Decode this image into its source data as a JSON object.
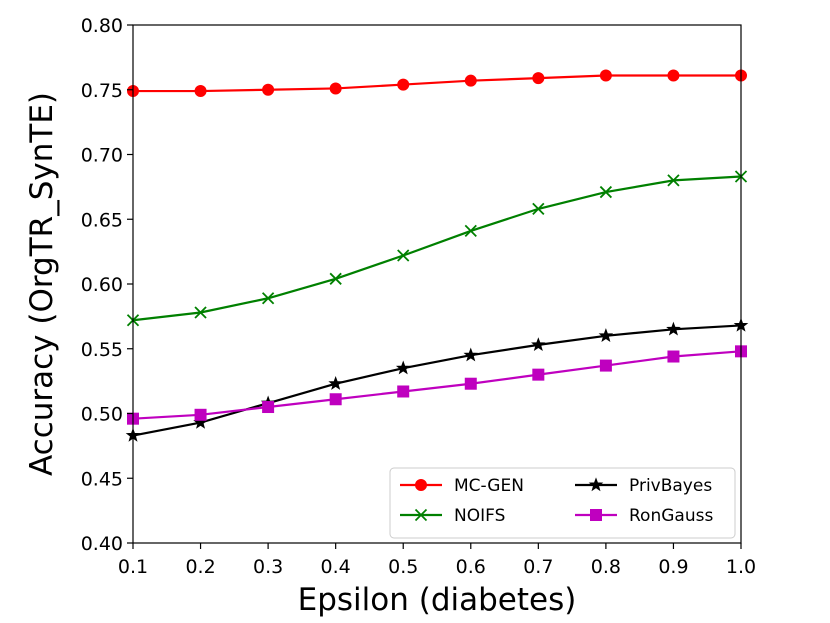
{
  "chart_data": {
    "type": "line",
    "xlabel": "Epsilon (diabetes)",
    "ylabel": "Accuracy (OrgTR_SynTE)",
    "xlim": [
      0.1,
      1.0
    ],
    "ylim": [
      0.4,
      0.8
    ],
    "x": [
      0.1,
      0.2,
      0.3,
      0.4,
      0.5,
      0.6,
      0.7,
      0.8,
      0.9,
      1.0
    ],
    "x_tick_labels": [
      "0.1",
      "0.2",
      "0.3",
      "0.4",
      "0.5",
      "0.6",
      "0.7",
      "0.8",
      "0.9",
      "1.0"
    ],
    "y_ticks": [
      0.4,
      0.45,
      0.5,
      0.55,
      0.6,
      0.65,
      0.7,
      0.75,
      0.8
    ],
    "y_tick_labels": [
      "0.40",
      "0.45",
      "0.50",
      "0.55",
      "0.60",
      "0.65",
      "0.70",
      "0.75",
      "0.80"
    ],
    "grid": false,
    "legend_position": "bottom-right",
    "series": [
      {
        "name": "MC-GEN",
        "color": "#ff0000",
        "marker": "circle",
        "values": [
          0.749,
          0.749,
          0.75,
          0.751,
          0.754,
          0.757,
          0.759,
          0.761,
          0.761,
          0.761
        ]
      },
      {
        "name": "NOIFS",
        "color": "#008000",
        "marker": "x",
        "values": [
          0.572,
          0.578,
          0.589,
          0.604,
          0.622,
          0.641,
          0.658,
          0.671,
          0.68,
          0.683
        ]
      },
      {
        "name": "PrivBayes",
        "color": "#000000",
        "marker": "star",
        "values": [
          0.483,
          0.493,
          0.508,
          0.523,
          0.535,
          0.545,
          0.553,
          0.56,
          0.565,
          0.568
        ]
      },
      {
        "name": "RonGauss",
        "color": "#bf00bf",
        "marker": "square",
        "values": [
          0.496,
          0.499,
          0.505,
          0.511,
          0.517,
          0.523,
          0.53,
          0.537,
          0.544,
          0.548
        ]
      }
    ]
  }
}
